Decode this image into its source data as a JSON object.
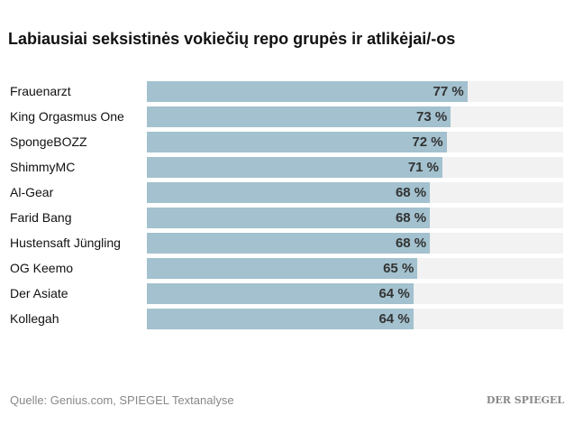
{
  "chart_data": {
    "type": "bar",
    "orientation": "horizontal",
    "title": "Labiausiai seksistinės vokiečių repo grupės ir atlikėjai/-os",
    "categories": [
      "Frauenarzt",
      "King Orgasmus One",
      "SpongeBOZZ",
      "ShimmyMC",
      "Al-Gear",
      "Farid Bang",
      "Hustensaft Jüngling",
      "OG Keemo",
      "Der Asiate",
      "Kollegah"
    ],
    "values": [
      77,
      73,
      72,
      71,
      68,
      68,
      68,
      65,
      64,
      64
    ],
    "value_labels": [
      "77 %",
      "73 %",
      "72 %",
      "71 %",
      "68 %",
      "68 %",
      "68 %",
      "65 %",
      "64 %",
      "64 %"
    ],
    "xlim": [
      0,
      100
    ],
    "grid": false,
    "colors": {
      "bar": "#a3c1ce",
      "track": "#f2f2f2"
    }
  },
  "source": "Quelle: Genius.com, SPIEGEL Textanalyse",
  "logo": "DER SPIEGEL"
}
